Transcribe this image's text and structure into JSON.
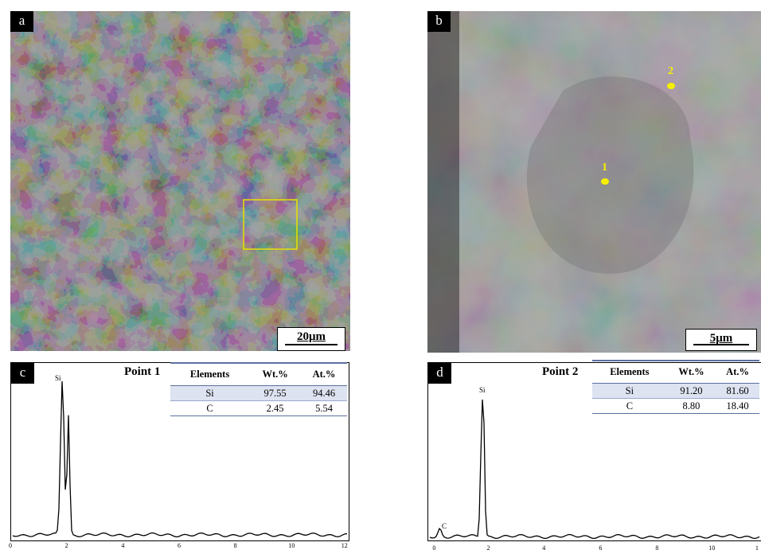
{
  "panels": {
    "a": {
      "letter": "a",
      "scale_bar": "20μm"
    },
    "b": {
      "letter": "b",
      "scale_bar": "5μm",
      "markers": [
        {
          "label": "1"
        },
        {
          "label": "2"
        }
      ]
    },
    "c": {
      "letter": "c",
      "title": "Point 1",
      "table": {
        "headers": [
          "Elements",
          "Wt.%",
          "At.%"
        ],
        "rows": [
          [
            "Si",
            "97.55",
            "94.46"
          ],
          [
            "C",
            "2.45",
            "5.54"
          ]
        ]
      }
    },
    "d": {
      "letter": "d",
      "title": "Point 2",
      "table": {
        "headers": [
          "Elements",
          "Wt.%",
          "At.%"
        ],
        "rows": [
          [
            "Si",
            "91.20",
            "81.60"
          ],
          [
            "C",
            "8.80",
            "18.40"
          ]
        ]
      }
    }
  },
  "chart_data": [
    {
      "type": "line",
      "panel": "c",
      "xlim": [
        0,
        12
      ],
      "x_ticks": [
        "0",
        "2",
        "4",
        "6",
        "8",
        "10",
        "12"
      ],
      "peaks": [
        {
          "label": "Si",
          "x": 1.74
        }
      ]
    },
    {
      "type": "line",
      "panel": "d",
      "xlim": [
        0,
        11
      ],
      "x_ticks": [
        "0",
        "2",
        "4",
        "6",
        "8",
        "10",
        "1"
      ],
      "peaks": [
        {
          "label": "C",
          "x": 0.28
        },
        {
          "label": "Si",
          "x": 1.74
        }
      ]
    }
  ]
}
